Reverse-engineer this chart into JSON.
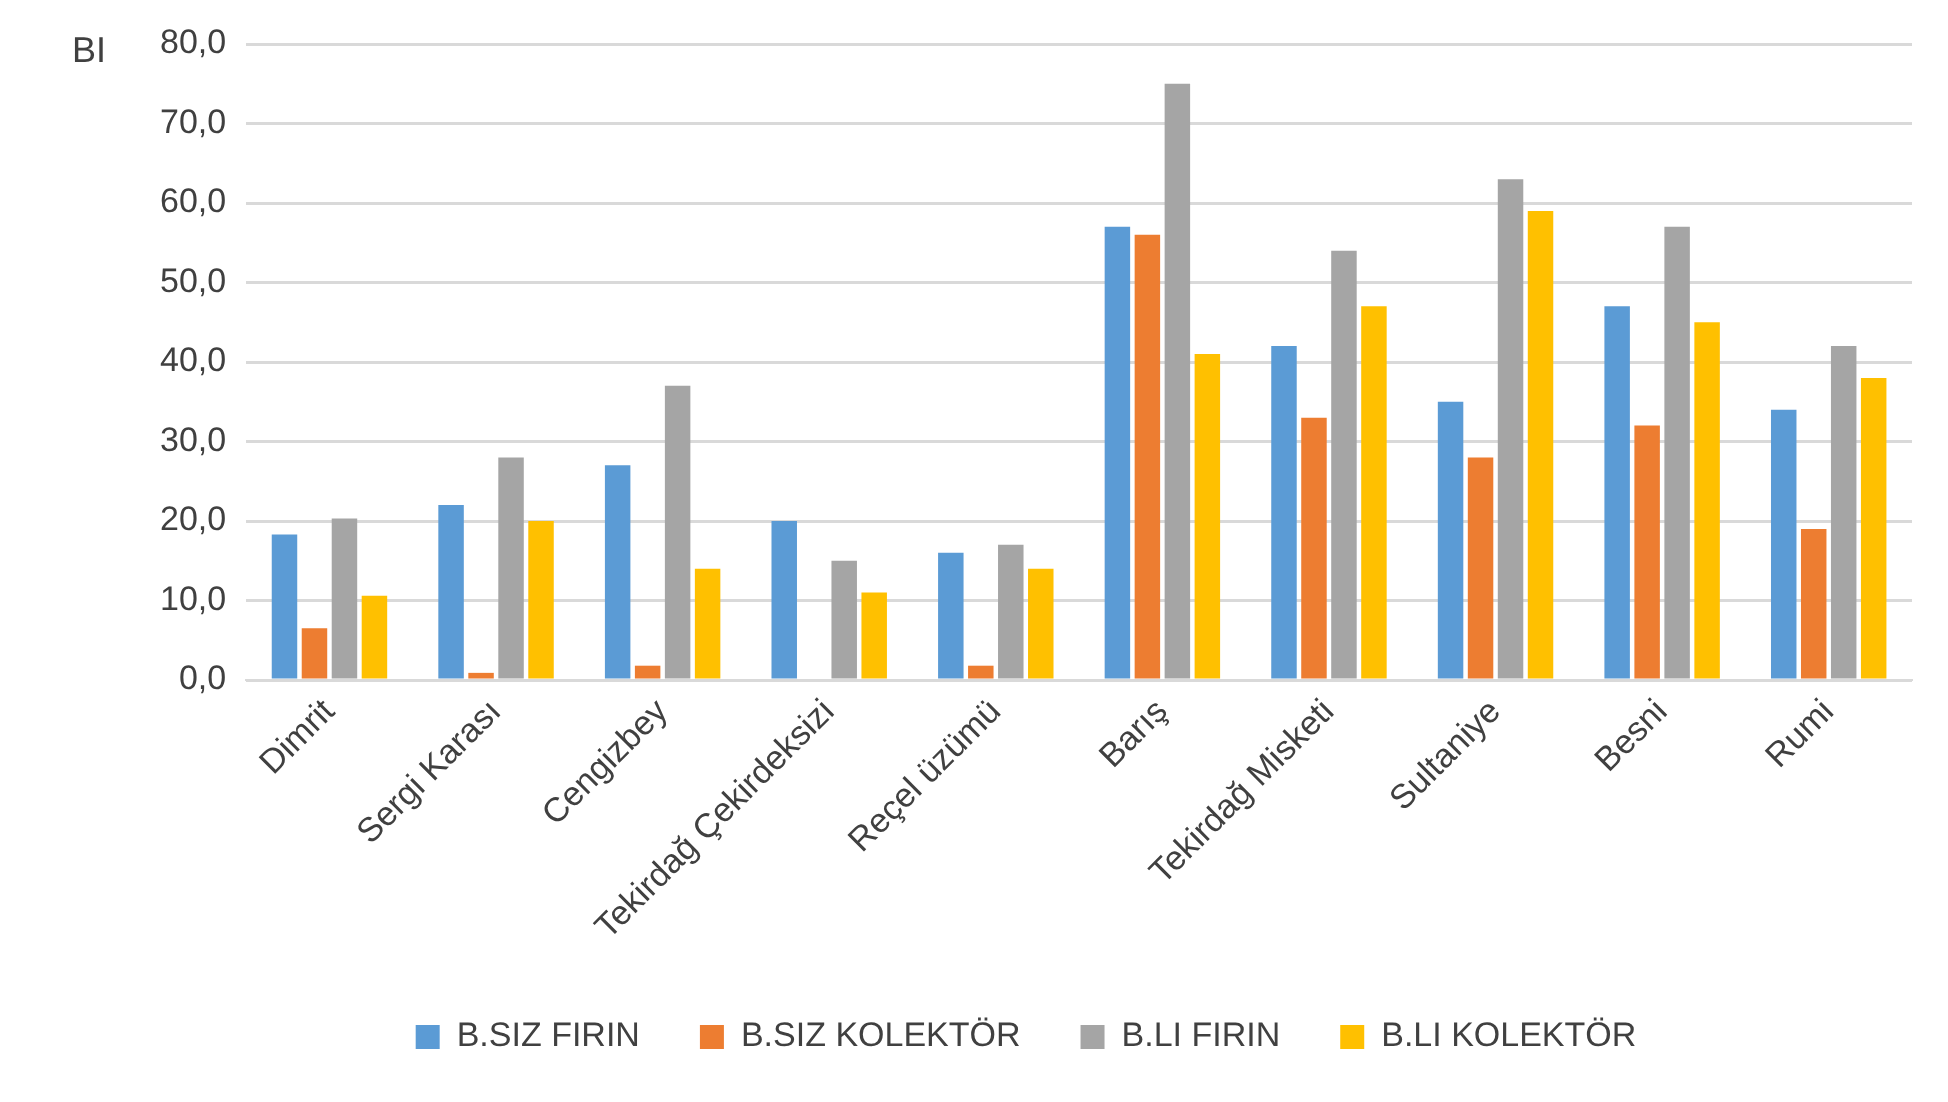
{
  "chart_data": {
    "type": "bar",
    "ylabel": "BI",
    "categories": [
      "Dimrit",
      "Sergi Karası",
      "Cengizbey",
      "Tekirdağ Çekirdeksizi",
      "Reçel üzümü",
      "Barış",
      "Tekirdağ Misketi",
      "Sultaniye",
      "Besni",
      "Rumi"
    ],
    "series": [
      {
        "name": "B.SIZ FIRIN",
        "color": "#5b9bd5",
        "values": [
          18.3,
          22,
          27,
          20,
          16,
          57,
          42,
          35,
          47,
          34
        ]
      },
      {
        "name": "B.SIZ KOLEKTÖR",
        "color": "#ed7d31",
        "values": [
          6.5,
          0.9,
          1.8,
          null,
          1.8,
          56,
          33,
          28,
          32,
          19
        ]
      },
      {
        "name": "B.LI FIRIN",
        "color": "#a5a5a5",
        "values": [
          20.3,
          28,
          37,
          15,
          17,
          75,
          54,
          63,
          57,
          42
        ]
      },
      {
        "name": "B.LI KOLEKTÖR",
        "color": "#ffc000",
        "values": [
          10.6,
          20,
          14,
          11,
          14,
          41,
          47,
          59,
          45,
          38
        ]
      }
    ],
    "ylim": [
      0,
      80
    ],
    "yticks": [
      {
        "value": 0,
        "label": "0,0"
      },
      {
        "value": 10,
        "label": "10,0"
      },
      {
        "value": 20,
        "label": "20,0"
      },
      {
        "value": 30,
        "label": "30,0"
      },
      {
        "value": 40,
        "label": "40,0"
      },
      {
        "value": 50,
        "label": "50,0"
      },
      {
        "value": 60,
        "label": "60,0"
      },
      {
        "value": 70,
        "label": "70,0"
      },
      {
        "value": 80,
        "label": "80,0"
      }
    ],
    "grid": "y",
    "legend": "bottom"
  }
}
